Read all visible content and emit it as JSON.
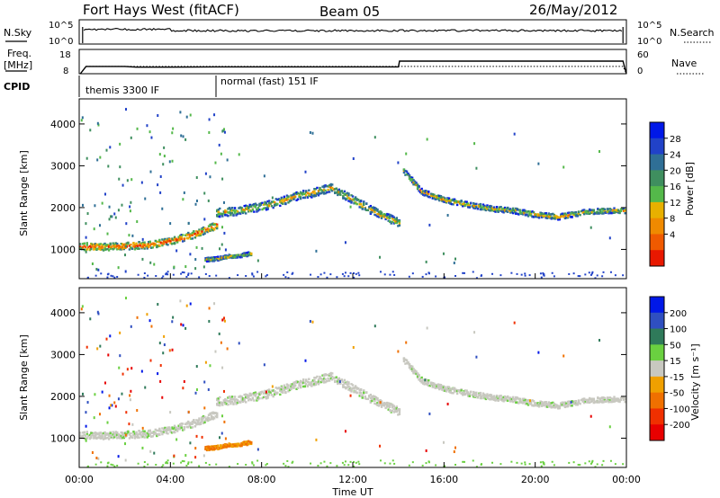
{
  "header": {
    "station": "Fort Hays West (fitACF)",
    "beam": "Beam 05",
    "date": "26/May/2012"
  },
  "top_panels": {
    "nsky_label": "N.Sky",
    "nsky_ticks": [
      "10^5",
      "10^0"
    ],
    "nsearch_label": "N.Search",
    "nsearch_ticks": [
      "10^5",
      "10^0"
    ],
    "freq_label": "Freq.",
    "freq_unit": "[MHz]",
    "freq_ticks": [
      "18",
      "8"
    ],
    "nave_label": "Nave",
    "nave_ticks": [
      "60",
      "0"
    ],
    "cpid_label": "CPID",
    "cpid_segments": [
      {
        "label": "themis 3300 IF",
        "start_hour": 0.0,
        "end_hour": 6.0
      },
      {
        "label": "normal (fast) 151 IF",
        "start_hour": 6.0,
        "end_hour": 24.0
      }
    ],
    "freq_trace": {
      "hours": [
        0.05,
        0.3,
        2.0,
        2.5,
        4.0,
        6.0,
        14.0,
        14.05,
        23.85,
        24.0
      ],
      "values_mhz": [
        8,
        11,
        11,
        10.7,
        10.7,
        10.8,
        10.8,
        13.2,
        13.2,
        8
      ]
    },
    "nave_trace": {
      "hours": [
        0.05,
        0.3,
        6.0,
        23.85,
        24.0
      ],
      "values": [
        0,
        18,
        18,
        18,
        0
      ]
    }
  },
  "chart_data": [
    {
      "type": "heatmap",
      "name": "power",
      "ylabel": "Slant Range [km]",
      "xlim_hours": [
        0,
        24
      ],
      "ylim": [
        300,
        4600
      ],
      "y_ticks": [
        1000,
        2000,
        3000,
        4000
      ],
      "colorbar": {
        "label": "Power [dB]",
        "ticks": [
          "28",
          "24",
          "20",
          "16",
          "12",
          "8",
          "4"
        ],
        "colors": [
          "#0018e8",
          "#2142c8",
          "#2f6f96",
          "#3f8f5f",
          "#54b84a",
          "#e8b000",
          "#f08a00",
          "#f05a00",
          "#e81800"
        ]
      },
      "echo_bands": [
        {
          "hours": [
            0.0,
            1.0,
            2.0,
            3.0,
            4.0,
            5.0,
            6.0
          ],
          "center_km": [
            1100,
            1080,
            1100,
            1130,
            1220,
            1380,
            1600
          ],
          "width_km": 170
        },
        {
          "hours": [
            6.0,
            7.0,
            8.0,
            9.0,
            9.5,
            10.0,
            11.0,
            12.0,
            13.0,
            14.0
          ],
          "center_km": [
            1900,
            1950,
            2050,
            2200,
            2300,
            2350,
            2500,
            2200,
            1900,
            1650
          ],
          "width_km": 200
        },
        {
          "hours": [
            14.2,
            15.0,
            16.0,
            17.0,
            18.0,
            19.0,
            20.0,
            21.0,
            22.0,
            23.0,
            23.9
          ],
          "center_km": [
            2900,
            2400,
            2200,
            2100,
            2000,
            1950,
            1850,
            1800,
            1900,
            1950,
            1950
          ],
          "width_km": 130
        },
        {
          "hours": [
            5.5,
            6.0,
            6.5,
            7.0,
            7.5
          ],
          "center_km": [
            780,
            800,
            850,
            880,
            920
          ],
          "width_km": 90
        }
      ]
    },
    {
      "type": "heatmap",
      "name": "velocity",
      "ylabel": "Slant Range [km]",
      "xlabel": "Time UT",
      "x_ticks": [
        "00:00",
        "04:00",
        "08:00",
        "12:00",
        "16:00",
        "20:00",
        "00:00"
      ],
      "xlim_hours": [
        0,
        24
      ],
      "ylim": [
        300,
        4600
      ],
      "y_ticks": [
        1000,
        2000,
        3000,
        4000
      ],
      "colorbar": {
        "label": "Velocity [m s⁻¹]",
        "ticks": [
          "200",
          "100",
          "50",
          "15",
          "-15",
          "-50",
          "-100",
          "-200"
        ],
        "colors": [
          "#0018e8",
          "#2f4fc0",
          "#2f7a5a",
          "#6ad040",
          "#c8c8c0",
          "#f0a000",
          "#f07000",
          "#f03000",
          "#e80000"
        ]
      }
    }
  ]
}
